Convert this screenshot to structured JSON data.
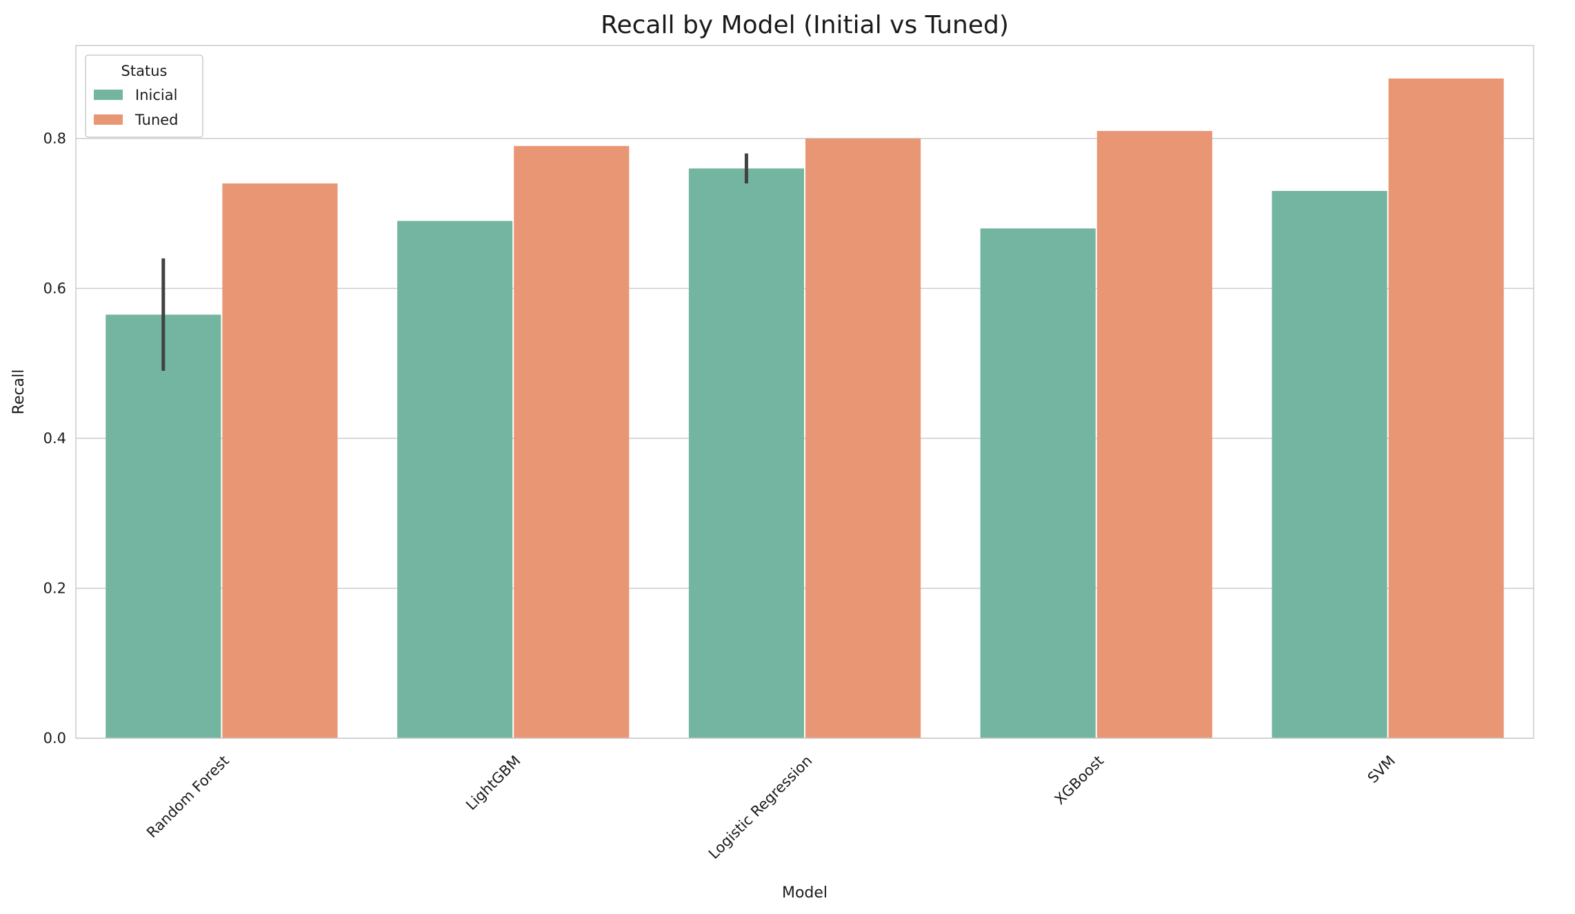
{
  "chart_data": {
    "type": "bar",
    "title": "Recall by Model (Initial vs Tuned)",
    "xlabel": "Model",
    "ylabel": "Recall",
    "categories": [
      "Random Forest",
      "LightGBM",
      "Logistic Regression",
      "XGBoost",
      "SVM"
    ],
    "series": [
      {
        "name": "Inicial",
        "color": "#73b5a0",
        "values": [
          0.565,
          0.69,
          0.76,
          0.68,
          0.73
        ],
        "error_bars": [
          [
            0.49,
            0.64
          ],
          null,
          [
            0.74,
            0.78
          ],
          null,
          null
        ]
      },
      {
        "name": "Tuned",
        "color": "#e99674",
        "values": [
          0.74,
          0.79,
          0.8,
          0.81,
          0.88
        ]
      }
    ],
    "ylim": [
      0,
      0.924
    ],
    "yticks": [
      0.0,
      0.2,
      0.4,
      0.6,
      0.8
    ],
    "ytick_labels": [
      "0.0",
      "0.2",
      "0.4",
      "0.6",
      "0.8"
    ],
    "grid": "horizontal",
    "legend": {
      "title": "Status",
      "placement": "top-left"
    },
    "x_tick_rotation": "45 degrees"
  }
}
